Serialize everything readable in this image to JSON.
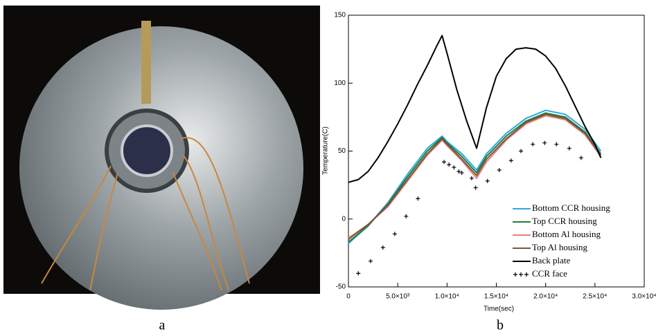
{
  "panels": {
    "captions": [
      "a",
      "b"
    ]
  },
  "chart_data": {
    "type": "line",
    "xlabel": "Time(sec)",
    "ylabel": "Temperature(C)",
    "xlim": [
      0,
      30000
    ],
    "ylim": [
      -50,
      150
    ],
    "xticks": [
      0,
      {
        "value": 5000,
        "label": "5.0×10³"
      },
      {
        "value": 10000,
        "label": "1.0×10⁴"
      },
      {
        "value": 15000,
        "label": "1.5×10⁴"
      },
      {
        "value": 20000,
        "label": "2.0×10⁴"
      },
      {
        "value": 25000,
        "label": "2.5×10⁴"
      },
      {
        "value": 30000,
        "label": "3.0×10⁴"
      }
    ],
    "yticks": [
      -50,
      0,
      50,
      100,
      150
    ],
    "legend": "lower right",
    "series": [
      {
        "name": "Bottom CCR housing",
        "color": "#2aa8e0",
        "style": "line",
        "x": [
          0,
          2000,
          4000,
          6000,
          8000,
          9500,
          10000,
          11500,
          13000,
          14000,
          16000,
          18000,
          20000,
          22000,
          24000,
          25600
        ],
        "values": [
          -18,
          -5,
          12,
          33,
          52,
          61,
          57,
          48,
          36,
          48,
          63,
          74,
          80,
          77,
          66,
          50
        ]
      },
      {
        "name": "Top CCR housing",
        "color": "#1d7a3c",
        "style": "line",
        "x": [
          0,
          2000,
          4000,
          6000,
          8000,
          9500,
          10000,
          11500,
          13000,
          14000,
          16000,
          18000,
          20000,
          22000,
          24000,
          25600
        ],
        "values": [
          -17,
          -5,
          11,
          31,
          50,
          60,
          56,
          46,
          34,
          46,
          61,
          72,
          78,
          75,
          64,
          48
        ]
      },
      {
        "name": "Bottom Al housing",
        "color": "#e58080",
        "style": "line",
        "x": [
          0,
          2000,
          4000,
          6000,
          8000,
          9500,
          10000,
          11500,
          13000,
          14000,
          16000,
          18000,
          20000,
          22000,
          24000,
          25600
        ],
        "values": [
          -14,
          -4,
          9,
          28,
          47,
          58,
          54,
          43,
          30,
          42,
          58,
          70,
          76,
          73,
          62,
          46
        ]
      },
      {
        "name": "Top Al housing",
        "color": "#7a5538",
        "style": "line",
        "x": [
          0,
          2000,
          4000,
          6000,
          8000,
          9500,
          10000,
          11500,
          13000,
          14000,
          16000,
          18000,
          20000,
          22000,
          24000,
          25600
        ],
        "values": [
          -15,
          -4,
          10,
          29,
          48,
          59,
          55,
          44,
          32,
          44,
          59,
          71,
          77,
          74,
          63,
          47
        ]
      },
      {
        "name": "Back plate",
        "color": "#000000",
        "style": "line",
        "x": [
          0,
          1000,
          2000,
          3000,
          4000,
          5000,
          6000,
          7000,
          8000,
          9000,
          9500,
          10000,
          11000,
          12000,
          13000,
          14000,
          15000,
          16000,
          17000,
          18000,
          19000,
          20000,
          21000,
          22000,
          23000,
          24000,
          25000,
          25600
        ],
        "values": [
          27,
          29,
          35,
          45,
          57,
          70,
          84,
          99,
          113,
          128,
          135,
          122,
          95,
          72,
          52,
          82,
          105,
          118,
          125,
          126,
          125,
          120,
          111,
          98,
          83,
          68,
          55,
          45
        ]
      },
      {
        "name": "CCR face",
        "color": "#000000",
        "style": "markers",
        "x": [
          1000,
          2250,
          3500,
          4700,
          5850,
          7050,
          9700,
          10200,
          10700,
          11200,
          11500,
          12500,
          12900,
          14100,
          15300,
          16500,
          17500,
          18700,
          19900,
          21100,
          22400,
          23600
        ],
        "values": [
          -40,
          -31,
          -21,
          -11,
          2,
          15,
          42,
          40,
          38,
          35,
          34,
          30,
          23,
          28,
          36,
          43,
          50,
          55,
          56,
          55,
          52,
          45
        ]
      }
    ]
  }
}
